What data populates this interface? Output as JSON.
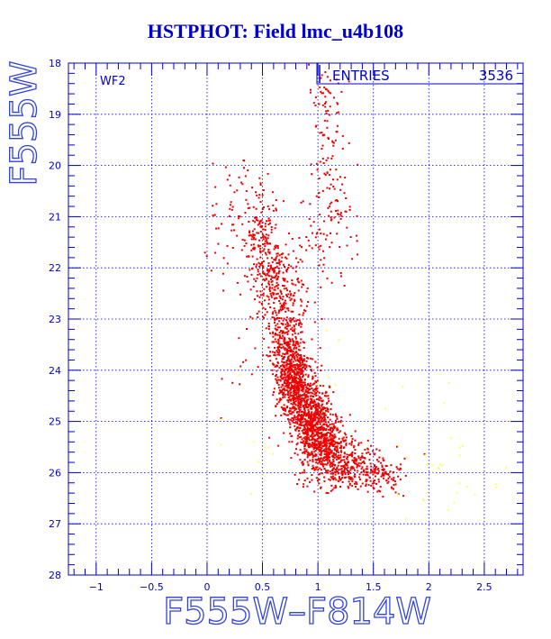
{
  "title": "HSTPHOT: Field lmc_u4b108",
  "chart_data": {
    "type": "scatter",
    "xlabel": "F555W–F814W",
    "ylabel": "F555W",
    "xlim": [
      -1.25,
      2.85
    ],
    "ylim": [
      28,
      18
    ],
    "y_inverted": true,
    "grid": true,
    "grid_style": "dotted",
    "x_ticks": [
      -1,
      -0.5,
      0,
      0.5,
      1,
      1.5,
      2,
      2.5
    ],
    "x_tick_labels": [
      "−1",
      "−0.5",
      "0",
      "0.5",
      "1",
      "1.5",
      "2",
      "2.5"
    ],
    "y_ticks": [
      18,
      19,
      20,
      21,
      22,
      23,
      24,
      25,
      26,
      27,
      28
    ],
    "y_tick_labels": [
      "18",
      "19",
      "20",
      "21",
      "22",
      "23",
      "24",
      "25",
      "26",
      "27",
      "28"
    ],
    "annotation": "WF2",
    "stats_box": {
      "label": "ENTRIES",
      "value": "3536"
    },
    "colors": {
      "axis": "#0000cc",
      "main": "#ee0000",
      "secondary": "#ffff66",
      "background": "#ffffff"
    },
    "series": [
      {
        "color": "#ee0000",
        "generator": "gaussian clusters approximating the point density; (x, y) centres in data units",
        "clusters": [
          {
            "n": 320,
            "x": 0.72,
            "y": 23.6,
            "sx": 0.07,
            "sy": 0.45
          },
          {
            "n": 220,
            "x": 0.62,
            "y": 22.3,
            "sx": 0.09,
            "sy": 0.45
          },
          {
            "n": 480,
            "x": 0.8,
            "y": 24.2,
            "sx": 0.08,
            "sy": 0.35
          },
          {
            "n": 520,
            "x": 0.93,
            "y": 24.9,
            "sx": 0.09,
            "sy": 0.3
          },
          {
            "n": 420,
            "x": 1.05,
            "y": 25.4,
            "sx": 0.11,
            "sy": 0.3
          },
          {
            "n": 330,
            "x": 1.22,
            "y": 25.85,
            "sx": 0.17,
            "sy": 0.22
          },
          {
            "n": 110,
            "x": 1.58,
            "y": 26.05,
            "sx": 0.12,
            "sy": 0.18
          },
          {
            "n": 150,
            "x": 0.5,
            "y": 21.5,
            "sx": 0.08,
            "sy": 0.45
          },
          {
            "n": 70,
            "x": 0.3,
            "y": 20.9,
            "sx": 0.14,
            "sy": 0.55
          },
          {
            "n": 70,
            "x": 0.95,
            "y": 21.8,
            "sx": 0.15,
            "sy": 0.7
          },
          {
            "n": 55,
            "x": 1.1,
            "y": 19.7,
            "sx": 0.08,
            "sy": 0.6
          },
          {
            "n": 35,
            "x": 1.08,
            "y": 18.7,
            "sx": 0.07,
            "sy": 0.25
          },
          {
            "n": 45,
            "x": 1.2,
            "y": 20.9,
            "sx": 0.08,
            "sy": 0.4
          },
          {
            "n": 40,
            "x": 0.55,
            "y": 23.5,
            "sx": 0.2,
            "sy": 1.0
          }
        ]
      },
      {
        "color": "#ffff66",
        "generator": "gaussian clusters approximating the point density; (x, y) centres in data units",
        "clusters": [
          {
            "n": 18,
            "x": 1.95,
            "y": 25.4,
            "sx": 0.2,
            "sy": 0.5
          },
          {
            "n": 14,
            "x": 2.3,
            "y": 26.2,
            "sx": 0.25,
            "sy": 0.5
          },
          {
            "n": 10,
            "x": 0.45,
            "y": 24.9,
            "sx": 0.15,
            "sy": 0.6
          },
          {
            "n": 6,
            "x": 1.2,
            "y": 23.8,
            "sx": 0.15,
            "sy": 0.5
          }
        ]
      }
    ]
  }
}
